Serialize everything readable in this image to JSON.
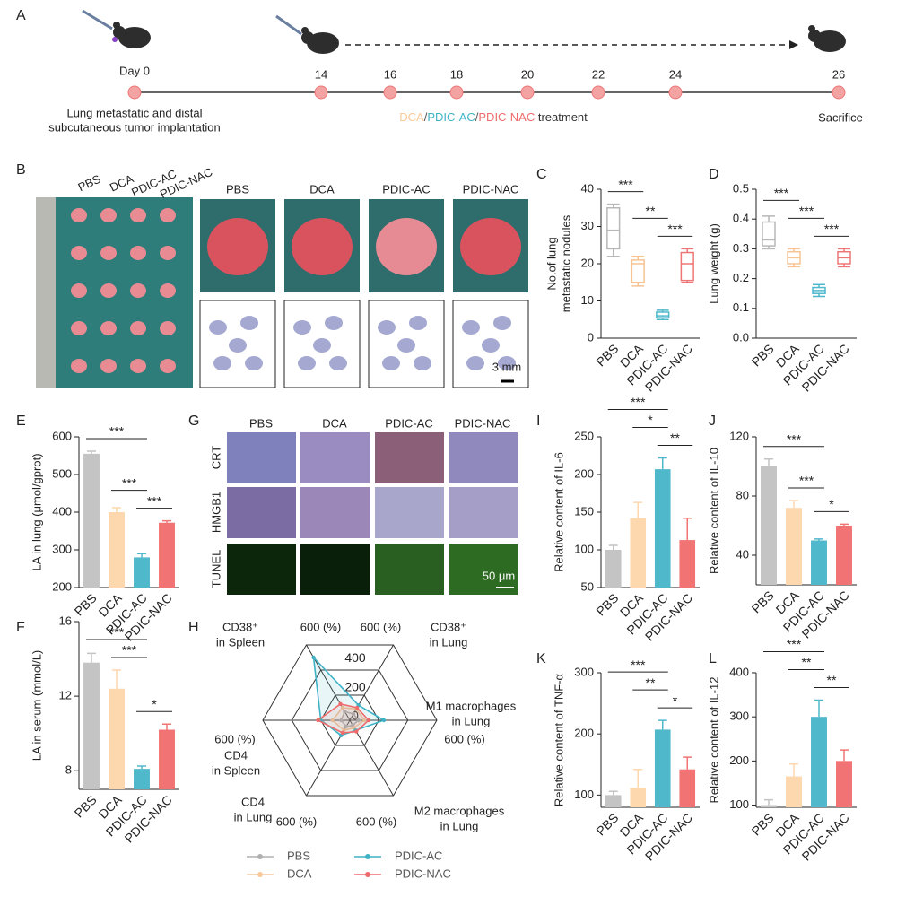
{
  "panel_labels": [
    "A",
    "B",
    "C",
    "D",
    "E",
    "F",
    "G",
    "H",
    "I",
    "J",
    "K",
    "L"
  ],
  "timeline": {
    "days": [
      "Day 0",
      14,
      16,
      18,
      20,
      22,
      24,
      26
    ],
    "implantation_caption": [
      "Lung metastatic and distal",
      "subcutaneous tumor implantation"
    ],
    "treatment": [
      {
        "text": "DCA",
        "color": "#f9c99a"
      },
      {
        "text": "/",
        "color": "#555555"
      },
      {
        "text": "PDIC-AC",
        "color": "#3fb3c6"
      },
      {
        "text": "/",
        "color": "#555555"
      },
      {
        "text": "PDIC-NAC",
        "color": "#ef6b6b"
      },
      {
        "text": " treatment",
        "color": "#333333"
      }
    ],
    "end_caption": "Sacrifice"
  },
  "photos": {
    "stack_labels": [
      "PBS",
      "DCA",
      "PDIC-AC",
      "PDIC-NAC"
    ],
    "column_labels": [
      "PBS",
      "DCA",
      "PDIC-AC",
      "PDIC-NAC"
    ],
    "scale_bar": "3 mm"
  },
  "micrographs": {
    "column_labels": [
      "PBS",
      "DCA",
      "PDIC-AC",
      "PDIC-NAC"
    ],
    "row_labels": [
      "CRT",
      "HMGB1",
      "TUNEL"
    ],
    "scale_bar": "50 μm"
  },
  "chart_data": [
    {
      "type": "box",
      "ylabel": [
        "No.of lung",
        "metastatic nodules"
      ],
      "categories": [
        "PBS",
        "DCA",
        "PDIC-AC",
        "PDIC-NAC"
      ],
      "min": [
        22,
        14,
        5,
        15
      ],
      "q1": [
        24,
        15,
        5.5,
        15.5
      ],
      "median": [
        29,
        20,
        6,
        20
      ],
      "q3": [
        35,
        21,
        7,
        23
      ],
      "max": [
        36,
        22,
        7.5,
        24
      ],
      "colors": [
        "#b8b8b8",
        "#f7c393",
        "#4fb8cb",
        "#ef7676"
      ],
      "ylim": [
        0,
        40
      ],
      "yticks": [
        0,
        10,
        20,
        30,
        40
      ],
      "comparisons": [
        {
          "from": "PBS",
          "to": "DCA",
          "label": "***"
        },
        {
          "from": "DCA",
          "to": "PDIC-AC",
          "label": "**"
        },
        {
          "from": "PDIC-AC",
          "to": "PDIC-NAC",
          "label": "***"
        }
      ]
    },
    {
      "type": "box",
      "ylabel": [
        "Lung weight (g)"
      ],
      "categories": [
        "PBS",
        "DCA",
        "PDIC-AC",
        "PDIC-NAC"
      ],
      "min": [
        0.3,
        0.24,
        0.14,
        0.24
      ],
      "q1": [
        0.31,
        0.25,
        0.15,
        0.25
      ],
      "median": [
        0.33,
        0.27,
        0.16,
        0.27
      ],
      "q3": [
        0.39,
        0.29,
        0.17,
        0.29
      ],
      "max": [
        0.41,
        0.3,
        0.18,
        0.3
      ],
      "colors": [
        "#b8b8b8",
        "#f7c393",
        "#4fb8cb",
        "#ef7676"
      ],
      "ylim": [
        0,
        0.5
      ],
      "yticks": [
        {
          "value": 0,
          "label": "0.0"
        },
        0.1,
        0.2,
        0.3,
        0.4,
        0.5
      ],
      "comparisons": [
        {
          "from": "PBS",
          "to": "DCA",
          "label": "***"
        },
        {
          "from": "DCA",
          "to": "PDIC-AC",
          "label": "***"
        },
        {
          "from": "PDIC-AC",
          "to": "PDIC-NAC",
          "label": "***"
        }
      ]
    },
    {
      "type": "bar",
      "ylabel": [
        "LA in lung (μmol/gprot)"
      ],
      "categories": [
        "PBS",
        "DCA",
        "PDIC-AC",
        "PDIC-NAC"
      ],
      "values": [
        555,
        400,
        280,
        372
      ],
      "errors": [
        7,
        12,
        10,
        5
      ],
      "colors": [
        "#c4c4c4",
        "#fdd7ae",
        "#4fb8cb",
        "#f17373"
      ],
      "ylim": [
        200,
        600
      ],
      "yticks": [
        200,
        300,
        400,
        500,
        600
      ],
      "comparisons": [
        {
          "from": "PBS",
          "to": "PDIC-AC",
          "label": "***"
        },
        {
          "from": "DCA",
          "to": "PDIC-AC",
          "label": "***"
        },
        {
          "from": "PDIC-AC",
          "to": "PDIC-NAC",
          "label": "***"
        }
      ]
    },
    {
      "type": "bar",
      "ylabel": [
        "LA in serum (mmol/L)"
      ],
      "categories": [
        "PBS",
        "DCA",
        "PDIC-AC",
        "PDIC-NAC"
      ],
      "values": [
        13.8,
        12.4,
        8.1,
        10.2
      ],
      "errors": [
        0.5,
        1.0,
        0.15,
        0.3
      ],
      "colors": [
        "#c4c4c4",
        "#fdd7ae",
        "#4fb8cb",
        "#f17373"
      ],
      "ylim": [
        7,
        16
      ],
      "yticks": [
        8,
        12,
        16
      ],
      "comparisons": [
        {
          "from": "PBS",
          "to": "PDIC-AC",
          "label": "***"
        },
        {
          "from": "DCA",
          "to": "PDIC-AC",
          "label": "***"
        },
        {
          "from": "PDIC-AC",
          "to": "PDIC-NAC",
          "label": "*"
        }
      ]
    },
    {
      "type": "bar",
      "ylabel": [
        "Relative content of IL-6"
      ],
      "categories": [
        "PBS",
        "DCA",
        "PDIC-AC",
        "PDIC-NAC"
      ],
      "values": [
        100,
        142,
        207,
        113
      ],
      "errors": [
        6,
        21,
        15,
        29
      ],
      "colors": [
        "#c4c4c4",
        "#fdd7ae",
        "#4fb8cb",
        "#f17373"
      ],
      "ylim": [
        50,
        250
      ],
      "yticks": [
        50,
        100,
        150,
        200,
        250
      ],
      "comparisons": [
        {
          "from": "PBS",
          "to": "PDIC-AC",
          "label": "***"
        },
        {
          "from": "DCA",
          "to": "PDIC-AC",
          "label": "*"
        },
        {
          "from": "PDIC-AC",
          "to": "PDIC-NAC",
          "label": "**"
        }
      ]
    },
    {
      "type": "bar",
      "ylabel": [
        "Relative content of IL-10"
      ],
      "categories": [
        "PBS",
        "DCA",
        "PDIC-AC",
        "PDIC-NAC"
      ],
      "values": [
        100,
        72,
        50,
        60
      ],
      "errors": [
        5,
        5,
        1,
        1
      ],
      "colors": [
        "#c4c4c4",
        "#fdd7ae",
        "#4fb8cb",
        "#f17373"
      ],
      "ylim": [
        20,
        120
      ],
      "yticks": [
        40,
        80,
        120
      ],
      "comparisons": [
        {
          "from": "PBS",
          "to": "PDIC-AC",
          "label": "***"
        },
        {
          "from": "DCA",
          "to": "PDIC-AC",
          "label": "***"
        },
        {
          "from": "PDIC-AC",
          "to": "PDIC-NAC",
          "label": "*"
        }
      ]
    },
    {
      "type": "bar",
      "ylabel": [
        "Relative content of TNF-α"
      ],
      "categories": [
        "PBS",
        "DCA",
        "PDIC-AC",
        "PDIC-NAC"
      ],
      "values": [
        100,
        112,
        207,
        142
      ],
      "errors": [
        6,
        30,
        15,
        20
      ],
      "colors": [
        "#c4c4c4",
        "#fdd7ae",
        "#4fb8cb",
        "#f17373"
      ],
      "ylim": [
        80,
        300
      ],
      "yticks": [
        100,
        200,
        300
      ],
      "comparisons": [
        {
          "from": "PBS",
          "to": "PDIC-AC",
          "label": "***"
        },
        {
          "from": "DCA",
          "to": "PDIC-AC",
          "label": "**"
        },
        {
          "from": "PDIC-AC",
          "to": "PDIC-NAC",
          "label": "*"
        }
      ]
    },
    {
      "type": "bar",
      "ylabel": [
        "Relative content of IL-12"
      ],
      "categories": [
        "PBS",
        "DCA",
        "PDIC-AC",
        "PDIC-NAC"
      ],
      "values": [
        100,
        165,
        300,
        200
      ],
      "errors": [
        12,
        28,
        38,
        25
      ],
      "colors": [
        "#c4c4c4",
        "#fdd7ae",
        "#4fb8cb",
        "#f17373"
      ],
      "ylim": [
        95,
        400
      ],
      "yticks": [
        100,
        200,
        300,
        400
      ],
      "comparisons": [
        {
          "from": "PBS",
          "to": "PDIC-AC",
          "label": "***"
        },
        {
          "from": "DCA",
          "to": "PDIC-AC",
          "label": "**"
        },
        {
          "from": "PDIC-AC",
          "to": "PDIC-NAC",
          "label": "**"
        }
      ]
    },
    {
      "type": "radar",
      "axes": [
        [
          "CD38⁺",
          "in Lung"
        ],
        [
          "M1 macrophages",
          "in Lung"
        ],
        [
          "M2 macrophages",
          "in Lung"
        ],
        [
          "CD4",
          "in Lung"
        ],
        [
          "CD4",
          "in Spleen"
        ],
        [
          "CD38⁺",
          "in Spleen"
        ]
      ],
      "rlim": [
        0,
        600
      ],
      "rticks": [
        0,
        200,
        400,
        {
          "value": 600,
          "label": "600 (%)"
        }
      ],
      "series": [
        {
          "name": "PBS",
          "color": "#b0b0b0",
          "values": [
            50,
            60,
            40,
            50,
            60,
            70
          ]
        },
        {
          "name": "DCA",
          "color": "#f9c99a",
          "values": [
            90,
            100,
            60,
            80,
            120,
            100
          ]
        },
        {
          "name": "PDIC-AC",
          "color": "#3fb3c6",
          "values": [
            120,
            235,
            80,
            120,
            200,
            500
          ]
        },
        {
          "name": "PDIC-NAC",
          "color": "#ef6b6b",
          "values": [
            100,
            130,
            90,
            100,
            220,
            130
          ]
        }
      ]
    }
  ]
}
